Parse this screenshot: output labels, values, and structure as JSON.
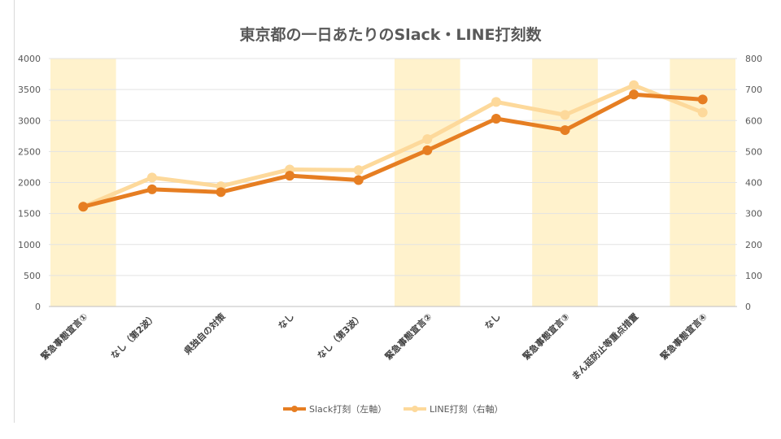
{
  "chart_data": {
    "type": "line",
    "title": "東京都の一日あたりのSlack・LINE打刻数",
    "categories": [
      "緊急事態宣言①",
      "なし（第2波）",
      "県独自の対策",
      "なし",
      "なし（第3波）",
      "緊急事態宣言②",
      "なし",
      "緊急事態宣言③",
      "まん延防止等重点措置",
      "緊急事態宣言④"
    ],
    "highlighted_categories": [
      0,
      5,
      7,
      9
    ],
    "highlight_color": "#fff2cc",
    "y_left": {
      "lim": [
        0,
        4000
      ],
      "ticks": [
        "0",
        "500",
        "1000",
        "1500",
        "2000",
        "2500",
        "3000",
        "3500",
        "4000"
      ]
    },
    "y_right": {
      "lim": [
        0,
        800
      ],
      "ticks": [
        "0",
        "100",
        "200",
        "300",
        "400",
        "500",
        "600",
        "700",
        "800"
      ]
    },
    "grid": true,
    "legend_position": "bottom",
    "series": [
      {
        "name": "Slack打刻（左軸）",
        "axis": "left",
        "color": "#e67e22",
        "values": [
          1610,
          1890,
          1845,
          2110,
          2040,
          2520,
          3030,
          2845,
          3420,
          3340
        ]
      },
      {
        "name": "LINE打刻（右軸）",
        "axis": "right",
        "color": "#fdd99b",
        "values": [
          322,
          416,
          388,
          442,
          440,
          540,
          660,
          618,
          714,
          626
        ]
      }
    ]
  }
}
